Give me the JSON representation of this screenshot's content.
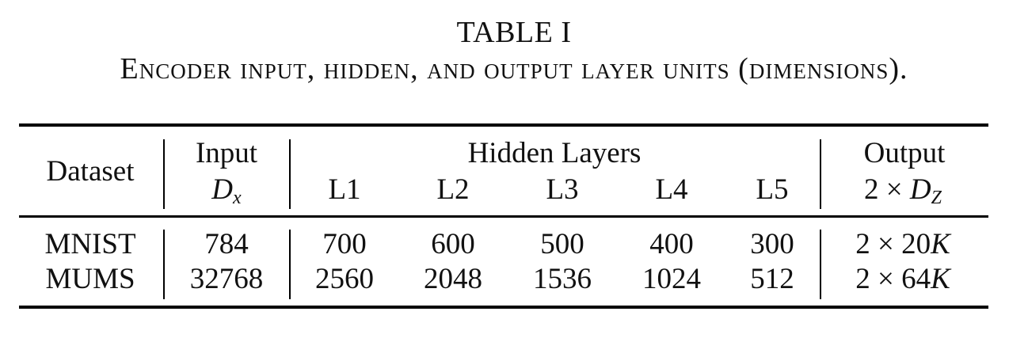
{
  "caption": {
    "title": "TABLE I",
    "subtitle": "Encoder input, hidden, and output layer units (dimensions)."
  },
  "table": {
    "header": {
      "dataset": "Dataset",
      "input": "Input",
      "input_sub_base": "D",
      "input_sub_index": "x",
      "hidden": "Hidden Layers",
      "layers": [
        "L1",
        "L2",
        "L3",
        "L4",
        "L5"
      ],
      "output": "Output",
      "output_factor": "2 ×",
      "output_base": "D",
      "output_index": "Z"
    },
    "rows": [
      {
        "dataset": "MNIST",
        "input": "784",
        "hidden": [
          "700",
          "600",
          "500",
          "400",
          "300"
        ],
        "output_factor": "2 × 20",
        "output_unit": "K"
      },
      {
        "dataset": "MUMS",
        "input": "32768",
        "hidden": [
          "2560",
          "2048",
          "1536",
          "1024",
          "512"
        ],
        "output_factor": "2 × 64",
        "output_unit": "K"
      }
    ]
  }
}
